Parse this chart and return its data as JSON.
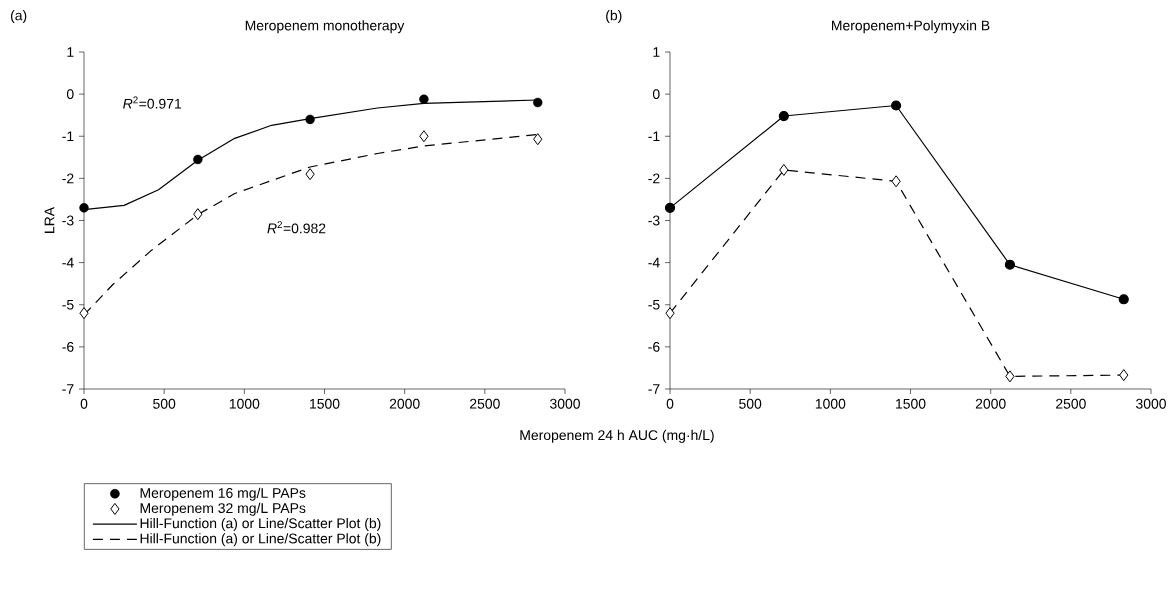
{
  "chart_data": [
    {
      "type": "scatter",
      "title": "Meropenem monotherapy",
      "xlabel": "Meropenem 24 h AUC (mg·h/L)",
      "ylabel": "LRA",
      "xlim": [
        0,
        3000
      ],
      "ylim": [
        -7,
        1
      ],
      "xticks": [
        0,
        500,
        1000,
        1500,
        2000,
        2500,
        3000
      ],
      "yticks": [
        -7,
        -6,
        -5,
        -4,
        -3,
        -2,
        -1,
        0,
        1
      ],
      "legend": "bottom",
      "annotations": [
        "(a)",
        "*R*$^{2}$=0.971",
        "*R*$^{2}$=0.982"
      ],
      "series": [
        {
          "name": "Meropenem 16 mg/L PAPs",
          "marker": "circle",
          "color": "#000000",
          "x": [
            0,
            710,
            1410,
            2120,
            2830
          ],
          "values": [
            -2.7,
            -1.55,
            -0.6,
            -0.12,
            -0.2
          ]
        },
        {
          "name": "Meropenem 32 mg/L PAPs",
          "marker": "diamond",
          "color": "#000000",
          "x": [
            0,
            710,
            1410,
            2120,
            2830
          ],
          "values": [
            -5.2,
            -2.85,
            -1.9,
            -1.0,
            -1.07
          ]
        },
        {
          "name": "Hill-Function (a) or Line/Scatter Plot (b)",
          "type": "line",
          "line_style": "solid",
          "color": "#000000",
          "x": [
            0,
            250,
            465,
            710,
            940,
            1170,
            1410,
            1830,
            2120,
            2830
          ],
          "values": [
            -2.74,
            -2.64,
            -2.27,
            -1.57,
            -1.05,
            -0.74,
            -0.58,
            -0.33,
            -0.22,
            -0.14
          ]
        },
        {
          "name": "Hill-Function (a) or Line/Scatter Plot (b)",
          "type": "line",
          "line_style": "dashed",
          "color": "#000000",
          "x": [
            0,
            180,
            420,
            710,
            940,
            1410,
            1830,
            2120,
            2830
          ],
          "values": [
            -5.24,
            -4.52,
            -3.71,
            -2.86,
            -2.36,
            -1.73,
            -1.41,
            -1.23,
            -0.96
          ]
        }
      ]
    },
    {
      "type": "line",
      "title": "Meropenem+Polymyxin B",
      "xlim": [
        0,
        3000
      ],
      "ylim": [
        -7,
        1
      ],
      "xticks": [
        0,
        500,
        1000,
        1500,
        2000,
        2500,
        3000
      ],
      "yticks": [
        -7,
        -6,
        -5,
        -4,
        -3,
        -2,
        -1,
        0,
        1
      ],
      "annotations": [
        "(b)"
      ],
      "series": [
        {
          "line_style": "solid",
          "marker": "circle",
          "color": "#000000",
          "x": [
            0,
            710,
            1410,
            2120,
            2830
          ],
          "values": [
            -2.7,
            -0.52,
            -0.27,
            -4.05,
            -4.87
          ]
        },
        {
          "line_style": "dashed",
          "marker": "diamond",
          "color": "#000000",
          "x": [
            0,
            710,
            1410,
            2120,
            2830
          ],
          "values": [
            -5.2,
            -1.8,
            -2.07,
            -6.7,
            -6.67
          ]
        }
      ]
    }
  ]
}
